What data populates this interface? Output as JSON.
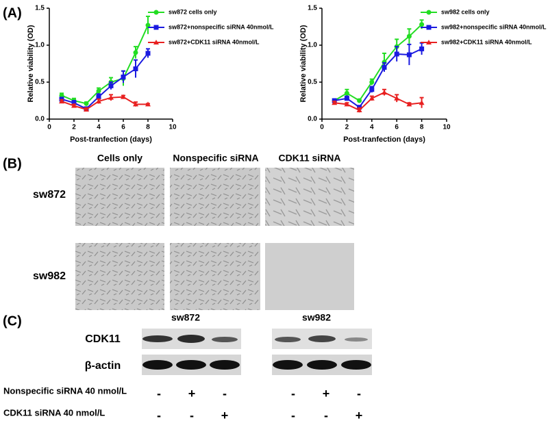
{
  "chart_data": [
    {
      "type": "line",
      "xlabel": "Post-tranfection (days)",
      "ylabel": "Relative viability (OD)",
      "xlim": [
        0,
        10
      ],
      "xticks": [
        0,
        2,
        4,
        6,
        8,
        10
      ],
      "ylim": [
        0,
        1.5
      ],
      "yticks": [
        {
          "value": 0,
          "label": "0.0"
        },
        {
          "value": 0.5,
          "label": "0.5"
        },
        {
          "value": 1,
          "label": "1.0"
        },
        {
          "value": 1.5,
          "label": "1.5"
        }
      ],
      "x": [
        1,
        2,
        3,
        4,
        5,
        6,
        7,
        8
      ],
      "series": [
        {
          "name": "sw872 cells only",
          "color": "#22dd22",
          "marker": "circle",
          "values": [
            0.32,
            0.25,
            0.21,
            0.38,
            0.5,
            0.55,
            0.9,
            1.27
          ],
          "errors": [
            0.03,
            0.03,
            0.02,
            0.04,
            0.06,
            0.1,
            0.08,
            0.12
          ]
        },
        {
          "name": "sw872+nonspecific siRNA 40nmol/L",
          "color": "#1a1ae0",
          "marker": "square",
          "values": [
            0.27,
            0.22,
            0.14,
            0.3,
            0.45,
            0.57,
            0.68,
            0.89
          ],
          "errors": [
            0.02,
            0.03,
            0.02,
            0.04,
            0.05,
            0.08,
            0.12,
            0.06
          ]
        },
        {
          "name": "sw872+CDK11 siRNA 40nmol/L",
          "color": "#e82020",
          "marker": "triangle",
          "values": [
            0.24,
            0.18,
            0.13,
            0.24,
            0.29,
            0.3,
            0.2,
            0.2
          ],
          "errors": [
            0.02,
            0.02,
            0.02,
            0.03,
            0.04,
            0.02,
            0.03,
            0.01
          ]
        }
      ]
    },
    {
      "type": "line",
      "xlabel": "Post-tranfection (days)",
      "ylabel": "Relative viability (OD)",
      "xlim": [
        0,
        10
      ],
      "xticks": [
        0,
        2,
        4,
        6,
        8,
        10
      ],
      "ylim": [
        0,
        1.5
      ],
      "yticks": [
        {
          "value": 0,
          "label": "0.0"
        },
        {
          "value": 0.5,
          "label": "0.5"
        },
        {
          "value": 1,
          "label": "1.0"
        },
        {
          "value": 1.5,
          "label": "1.5"
        }
      ],
      "x": [
        1,
        2,
        3,
        4,
        5,
        6,
        7,
        8
      ],
      "series": [
        {
          "name": "sw982 cells only",
          "color": "#22dd22",
          "marker": "circle",
          "values": [
            0.25,
            0.35,
            0.25,
            0.5,
            0.77,
            0.98,
            1.12,
            1.28
          ],
          "errors": [
            0.02,
            0.05,
            0.02,
            0.04,
            0.12,
            0.1,
            0.1,
            0.06
          ]
        },
        {
          "name": "sw982+nonspecific siRNA 40nmol/L",
          "color": "#1a1ae0",
          "marker": "square",
          "values": [
            0.25,
            0.28,
            0.16,
            0.4,
            0.7,
            0.88,
            0.87,
            0.95
          ],
          "errors": [
            0.02,
            0.03,
            0.02,
            0.04,
            0.06,
            0.1,
            0.14,
            0.08
          ]
        },
        {
          "name": "sw982+CDK11 siRNA 40nmol/L",
          "color": "#e82020",
          "marker": "triangle",
          "values": [
            0.22,
            0.2,
            0.12,
            0.28,
            0.36,
            0.28,
            0.2,
            0.22
          ],
          "errors": [
            0.02,
            0.02,
            0.03,
            0.03,
            0.04,
            0.05,
            0.02,
            0.07
          ]
        }
      ]
    }
  ],
  "panel_labels": [
    "(A)",
    "(B)",
    "(C)"
  ],
  "images": {
    "columns": [
      "Cells only",
      "Nonspecific siRNA",
      "CDK11 siRNA"
    ],
    "rows": [
      "sw872",
      "sw982"
    ]
  },
  "blot": {
    "groups": [
      "sw872",
      "sw982"
    ],
    "proteins": [
      "CDK11",
      "β-actin"
    ],
    "treatments": [
      {
        "label": "Nonspecific siRNA 40 nmol/L",
        "signs": [
          "-",
          "+",
          "-",
          "-",
          "+",
          "-"
        ]
      },
      {
        "label": "CDK11 siRNA 40 nmol/L",
        "signs": [
          "-",
          "-",
          "+",
          "-",
          "-",
          "+"
        ]
      }
    ]
  }
}
